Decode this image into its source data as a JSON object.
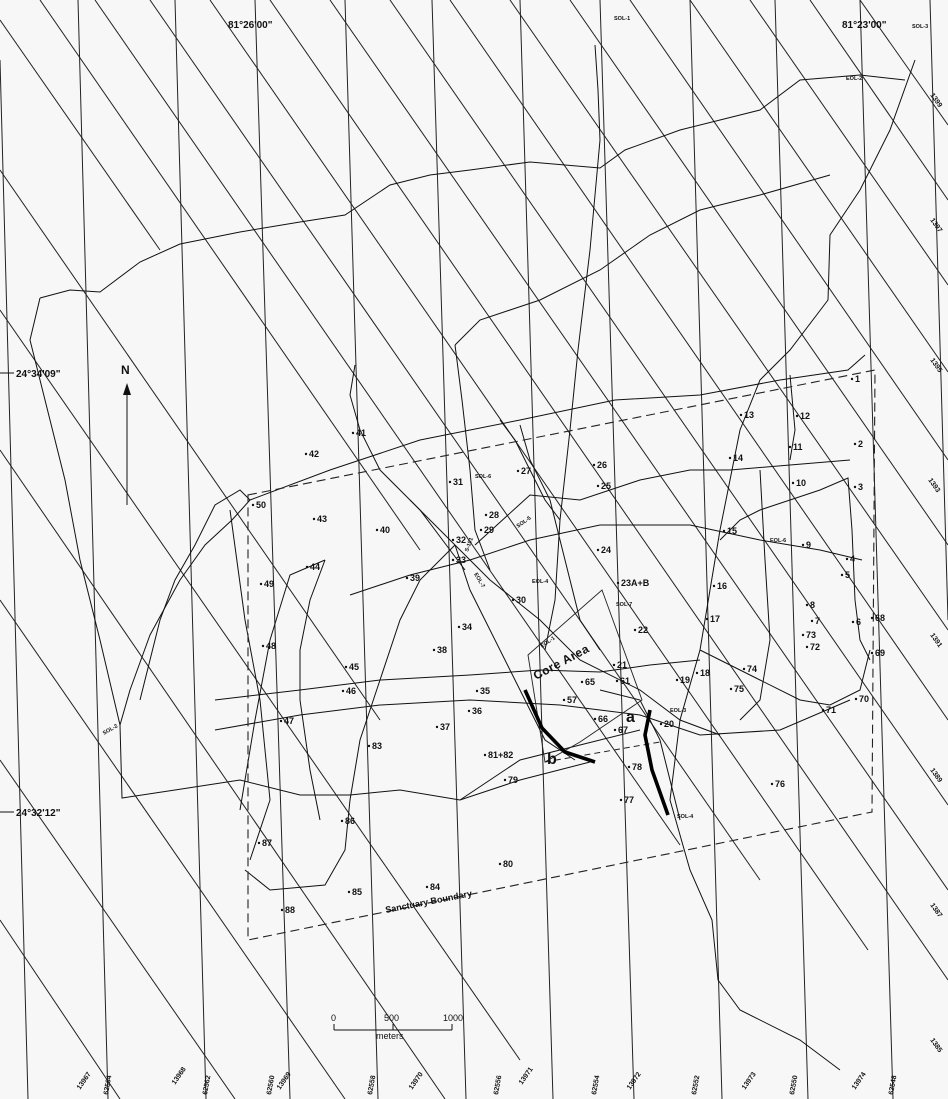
{
  "map": {
    "lon_labels": [
      "81°26'00\"",
      "81°23'00\""
    ],
    "lat_labels": [
      "24°34'09\"",
      "24°32'12\""
    ],
    "north_label": "N",
    "core_area_label": "Core Area",
    "sanctuary_label": "Sanctuary Boundary",
    "segment_labels": [
      "a",
      "b"
    ],
    "scale": {
      "ticks": [
        "0",
        "500",
        "1000"
      ],
      "unit": "meters"
    },
    "line_labels": [
      "SOL-1",
      "SOL-3",
      "EOL-2",
      "SOL-6",
      "SOL-5",
      "S-101",
      "EOL-7",
      "EOL-4",
      "SOL-7",
      "EOL-1",
      "EOL-3",
      "SOL-4",
      "SOL-2",
      "EOL-6"
    ],
    "grid_labels_bottom": [
      "13967",
      "62564",
      "13968",
      "62562",
      "62560",
      "13969",
      "62558",
      "13970",
      "62556",
      "13971",
      "62554",
      "13972",
      "62552",
      "13973",
      "62550",
      "13974",
      "62548"
    ],
    "grid_labels_right": [
      "1399",
      "1397",
      "1395",
      "1393",
      "1391",
      "1389",
      "1387",
      "1385"
    ],
    "stations": [
      "1",
      "2",
      "3",
      "4",
      "5",
      "6",
      "7",
      "8",
      "9",
      "10",
      "11",
      "12",
      "13",
      "14",
      "15",
      "16",
      "17",
      "18",
      "19",
      "20",
      "21",
      "22",
      "23A+B",
      "24",
      "25",
      "26",
      "27",
      "28",
      "29",
      "30",
      "31",
      "32",
      "33",
      "34",
      "35",
      "36",
      "37",
      "38",
      "39",
      "40",
      "41",
      "42",
      "43",
      "44",
      "45",
      "46",
      "47",
      "48",
      "49",
      "50",
      "57",
      "61",
      "65",
      "66",
      "67",
      "68",
      "69",
      "70",
      "71",
      "72",
      "73",
      "74",
      "75",
      "76",
      "77",
      "78",
      "79",
      "80",
      "81+82",
      "83",
      "84",
      "85",
      "86",
      "87",
      "88"
    ]
  }
}
